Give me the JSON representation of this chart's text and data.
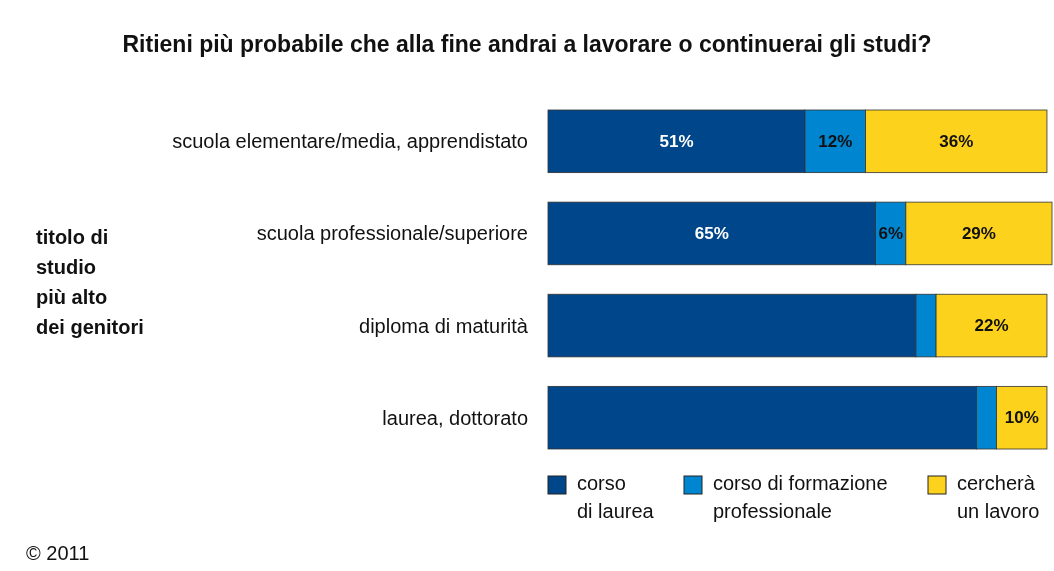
{
  "chart_data": {
    "type": "bar",
    "orientation": "horizontal",
    "stacked": true,
    "title": "Ritieni più probabile che alla fine andrai a lavorare o continuerai gli studi?",
    "ylabel": "titolo di studio più alto dei genitori",
    "categories": [
      "scuola elementare/media, apprendistato",
      "scuola professionale/superiore",
      "diploma di maturità",
      "laurea, dottorato"
    ],
    "series": [
      {
        "name": "corso di laurea",
        "color": "#00468a",
        "values": [
          51,
          65,
          73,
          85
        ],
        "value_labels": [
          "51%",
          "65%",
          null,
          null
        ]
      },
      {
        "name": "corso di formazione professionale",
        "color": "#0085d1",
        "values": [
          12,
          6,
          4,
          4
        ],
        "value_labels": [
          "12%",
          "6%",
          null,
          null
        ]
      },
      {
        "name": "cercherà un lavoro",
        "color": "#fdd21c",
        "values": [
          36,
          29,
          22,
          10
        ],
        "value_labels": [
          "36%",
          "29%",
          "22%",
          "10%"
        ]
      }
    ],
    "legend": "bottom",
    "annotations": [
      "© 2011"
    ]
  }
}
